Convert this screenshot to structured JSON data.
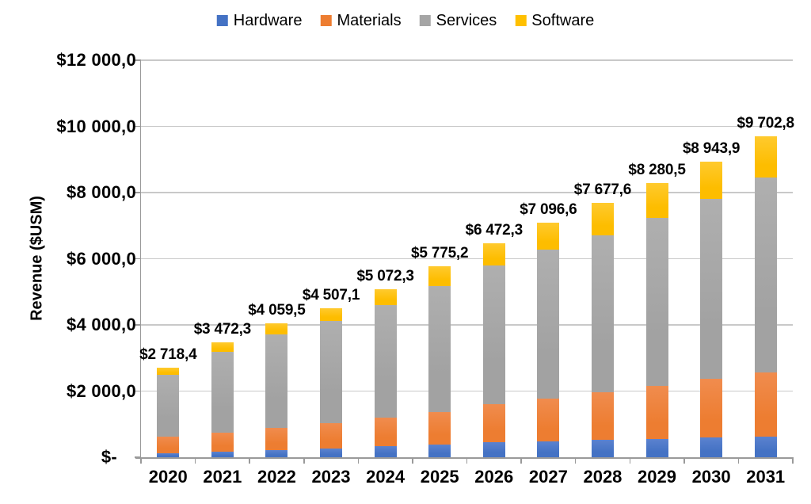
{
  "chart_data": {
    "type": "bar",
    "stacked": true,
    "title": "",
    "ylabel": "Revenue ($USM)",
    "xlabel": "",
    "categories": [
      "2020",
      "2021",
      "2022",
      "2023",
      "2024",
      "2025",
      "2026",
      "2027",
      "2028",
      "2029",
      "2030",
      "2031"
    ],
    "series": [
      {
        "name": "Hardware",
        "color": "#4472C4",
        "values": [
          130,
          170,
          210,
          260,
          330,
          390,
          460,
          490,
          520,
          560,
          600,
          630
        ]
      },
      {
        "name": "Materials",
        "color": "#ED7D31",
        "values": [
          495,
          580,
          665,
          775,
          875,
          970,
          1155,
          1285,
          1435,
          1595,
          1760,
          1930
        ]
      },
      {
        "name": "Services",
        "color": "#A5A5A5",
        "values": [
          1868.4,
          2427.3,
          2834.5,
          3092.1,
          3397.3,
          3825.2,
          4177.3,
          4491.6,
          4762.6,
          5090.5,
          5458.9,
          5892.8
        ]
      },
      {
        "name": "Software",
        "color": "#FFC000",
        "values": [
          225,
          295,
          350,
          380,
          470,
          590,
          680,
          830,
          960,
          1035,
          1125,
          1250
        ]
      }
    ],
    "totals": [
      2718.4,
      3472.3,
      4059.5,
      4507.1,
      5072.3,
      5775.2,
      6472.3,
      7096.6,
      7677.6,
      8280.5,
      8943.9,
      9702.8
    ],
    "total_labels": [
      "$2 718,4",
      "$3 472,3",
      "$4 059,5",
      "$4 507,1",
      "$5 072,3",
      "$5 775,2",
      "$6 472,3",
      "$7 096,6",
      "$7 677,6",
      "$8 280,5",
      "$8 943,9",
      "$9 702,8"
    ],
    "ylim": [
      0,
      12000
    ],
    "ytick_interval": 2000,
    "yticks": [
      0,
      2000,
      4000,
      6000,
      8000,
      10000,
      12000
    ],
    "ytick_labels": [
      "$-",
      "$2 000,0",
      "$4 000,0",
      "$6 000,0",
      "$8 000,0",
      "$10 000,0",
      "$12 000,0"
    ],
    "grid": true,
    "legend_position": "top"
  },
  "colors": {
    "background": "#FFFFFF",
    "gridline": "#C9C9C9",
    "axis": "#9A9A9A",
    "text": "#000000"
  }
}
